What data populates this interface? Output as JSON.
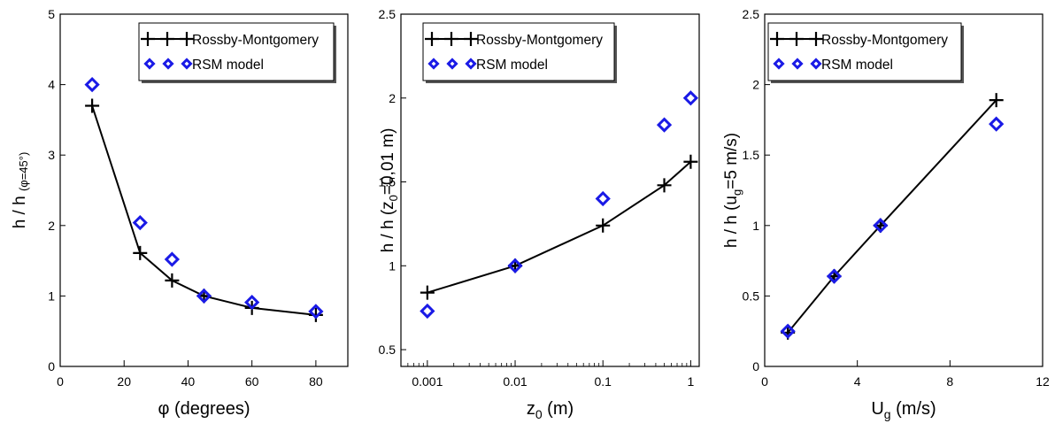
{
  "chart_data": [
    {
      "type": "line",
      "xlabel": "φ (degrees)",
      "ylabel": {
        "main": "h / h",
        "sub": "(φ=45°)"
      },
      "xlim": [
        0,
        90
      ],
      "ylim": [
        0,
        5
      ],
      "xscale": "linear",
      "xticks": [
        0,
        20,
        40,
        60,
        80
      ],
      "xtick_labels": [
        "0",
        "20",
        "40",
        "60",
        "80"
      ],
      "yticks": [
        0,
        1,
        2,
        3,
        4,
        5
      ],
      "ytick_labels": [
        "0",
        "1",
        "2",
        "3",
        "4",
        "5"
      ],
      "legend_position": "top-right",
      "grid": false,
      "series": [
        {
          "name": "Rossby-Montgomery",
          "style": "line-plus",
          "color": "#000000",
          "points": [
            [
              10,
              3.7
            ],
            [
              25,
              1.61
            ],
            [
              35,
              1.22
            ],
            [
              45,
              1.0
            ],
            [
              60,
              0.83
            ],
            [
              80,
              0.73
            ]
          ]
        },
        {
          "name": "RSM model",
          "style": "diamond",
          "color": "#1a1ae6",
          "points": [
            [
              10,
              4.0
            ],
            [
              25,
              2.04
            ],
            [
              35,
              1.52
            ],
            [
              45,
              1.0
            ],
            [
              60,
              0.91
            ],
            [
              80,
              0.78
            ]
          ]
        }
      ]
    },
    {
      "type": "line",
      "xlabel": {
        "main": "z",
        "sub": "0",
        "rest": " (m)"
      },
      "ylabel": {
        "main": "h / h (z",
        "sub": "0",
        "rest": "=0,01 m)"
      },
      "xlim": [
        0.0005,
        1.25
      ],
      "ylim": [
        0.4,
        2.5
      ],
      "xscale": "log",
      "xticks": [
        0.001,
        0.01,
        0.1,
        1
      ],
      "xtick_labels": [
        "0.001",
        "0.01",
        "0.1",
        "1"
      ],
      "yticks": [
        0.5,
        1,
        1.5,
        2,
        2.5
      ],
      "ytick_labels": [
        "0.5",
        "1",
        "1.5",
        "2",
        "2.5"
      ],
      "legend_position": "top-left",
      "grid": false,
      "series": [
        {
          "name": "Rossby-Montgomery",
          "style": "line-plus",
          "color": "#000000",
          "points": [
            [
              0.001,
              0.84
            ],
            [
              0.01,
              1.0
            ],
            [
              0.1,
              1.24
            ],
            [
              0.5,
              1.48
            ],
            [
              1,
              1.62
            ]
          ]
        },
        {
          "name": "RSM model",
          "style": "diamond",
          "color": "#1a1ae6",
          "points": [
            [
              0.001,
              0.73
            ],
            [
              0.01,
              1.0
            ],
            [
              0.1,
              1.4
            ],
            [
              0.5,
              1.84
            ],
            [
              1,
              2.0
            ]
          ]
        }
      ]
    },
    {
      "type": "line",
      "xlabel": {
        "main": "U",
        "sub": "g",
        "rest": " (m/s)"
      },
      "ylabel": {
        "main": "h / h (u",
        "sub": "g",
        "rest": "=5 m/s)"
      },
      "xlim": [
        0,
        12
      ],
      "ylim": [
        0,
        2.5
      ],
      "xscale": "linear",
      "xticks": [
        0,
        4,
        8,
        12
      ],
      "xtick_labels": [
        "0",
        "4",
        "8",
        "12"
      ],
      "yticks": [
        0,
        0.5,
        1,
        1.5,
        2,
        2.5
      ],
      "ytick_labels": [
        "0",
        "0.5",
        "1",
        "1.5",
        "2",
        "2.5"
      ],
      "legend_position": "top-left",
      "grid": false,
      "series": [
        {
          "name": "Rossby-Montgomery",
          "style": "line-plus",
          "color": "#000000",
          "points": [
            [
              1,
              0.24
            ],
            [
              3,
              0.64
            ],
            [
              5,
              1.0
            ],
            [
              10,
              1.89
            ]
          ]
        },
        {
          "name": "RSM model",
          "style": "diamond",
          "color": "#1a1ae6",
          "points": [
            [
              1,
              0.25
            ],
            [
              3,
              0.64
            ],
            [
              5,
              1.0
            ],
            [
              10,
              1.72
            ]
          ]
        }
      ]
    }
  ]
}
